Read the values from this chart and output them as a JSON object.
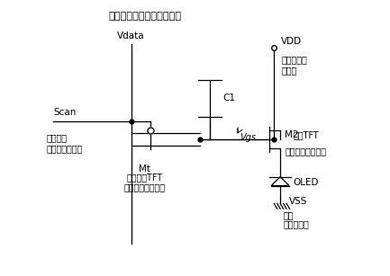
{
  "title": "画素信号（アナログ電圧）",
  "bg_color": "#ffffff",
  "line_color": "#000000",
  "labels": {
    "vdata": "Vdata",
    "scan": "Scan",
    "scan_jp1": "走査信号",
    "scan_jp2": "（選択パルス）",
    "vdd": "VDD",
    "vdd_jp1": "陽極駆動用",
    "vdd_jp2": "正電源",
    "m1": "Mt",
    "m1_jp1": "スイッチTFT",
    "m1_jp2": "（線形領域動作）",
    "m2": "M2",
    "m2_jp1": "駆動TFT",
    "m2_jp2": "（飽和領域動作）",
    "c1": "C1",
    "vgs": "Vgs",
    "oled": "OLED",
    "vss": "VSS",
    "vss_jp1": "陰極",
    "vss_jp2": "（負電源）"
  },
  "font_size": 7.5
}
